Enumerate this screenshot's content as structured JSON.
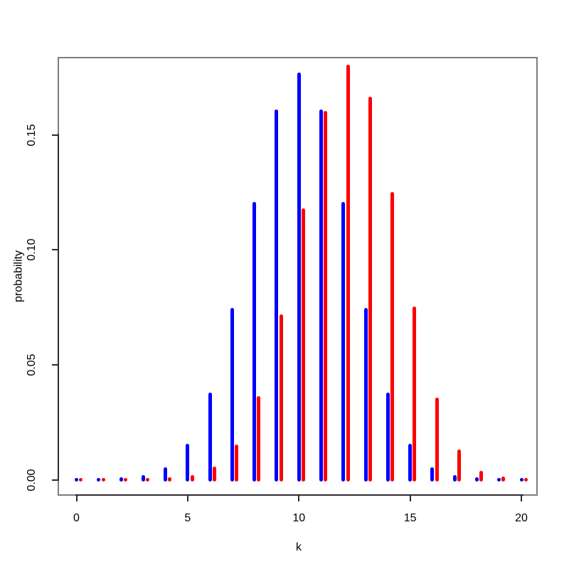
{
  "figure": {
    "background": "#ffffff",
    "frame_color": "#7d7d7d",
    "axis_color": "#2c2c2c",
    "text_color": "#000000"
  },
  "chart_data": {
    "type": "bar",
    "style": "vertical probability spikes (R plot type='h', lwd~5, rounded caps), two interleaved series",
    "title": "",
    "xlabel": "k",
    "ylabel": "probability",
    "x": [
      0,
      1,
      2,
      3,
      4,
      5,
      6,
      7,
      8,
      9,
      10,
      11,
      12,
      13,
      14,
      15,
      16,
      17,
      18,
      19,
      20
    ],
    "xticks": {
      "values": [
        0,
        5,
        10,
        15,
        20
      ],
      "labels": [
        "0",
        "5",
        "10",
        "15",
        "20"
      ]
    },
    "yticks": {
      "values": [
        0.0,
        0.05,
        0.1,
        0.15
      ],
      "labels": [
        "0.00",
        "0.05",
        "0.10",
        "0.15"
      ]
    },
    "xlim": [
      -0.8,
      21.0
    ],
    "ylim": [
      -0.0074,
      0.1835
    ],
    "grid": false,
    "legend": "none",
    "series": [
      {
        "name": "blue-series",
        "color": "#0000ff",
        "x_offset": 0,
        "values": [
          9.5e-07,
          1.91e-05,
          0.000181,
          0.001087,
          0.004621,
          0.014786,
          0.036964,
          0.073929,
          0.120134,
          0.160179,
          0.176197,
          0.160179,
          0.120134,
          0.073929,
          0.036964,
          0.014786,
          0.004621,
          0.001087,
          0.000181,
          1.91e-05,
          9.5e-07
        ]
      },
      {
        "name": "red-series",
        "color": "#ff0000",
        "x_offset": 0.2,
        "values": [
          1e-08,
          3.3e-07,
          4.7e-06,
          4.23e-05,
          0.00027,
          0.001294,
          0.004854,
          0.014563,
          0.035497,
          0.070995,
          0.117142,
          0.159738,
          0.179706,
          0.165853,
          0.12439,
          0.074634,
          0.034985,
          0.012347,
          0.003086,
          0.000487,
          3.66e-05
        ]
      }
    ]
  }
}
